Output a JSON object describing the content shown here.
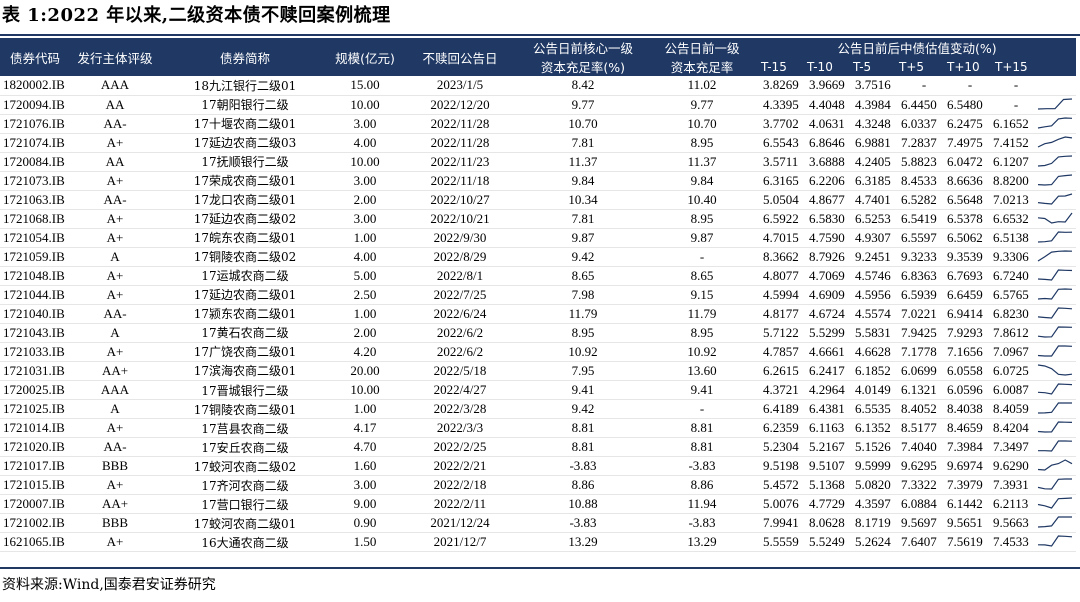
{
  "title": "表 1:2022 年以来,二级资本债不赎回案例梳理",
  "header": {
    "code": "债券代码",
    "rating": "发行主体评级",
    "name": "债券简称",
    "scale": "规模(亿元)",
    "date": "不赎回公告日",
    "core_line1": "公告日前核心一级",
    "core_line2": "资本充足率(%)",
    "tier1_line1": "公告日前一级",
    "tier1_line2": "资本充足率",
    "change_title": "公告日前后中债估值变动(%)",
    "offsets": [
      "T-15",
      "T-10",
      "T-5",
      "T+5",
      "T+10",
      "T+15"
    ]
  },
  "colors": {
    "header_bg": "#1f3864",
    "header_fg": "#ffffff",
    "rule": "#1f3864",
    "spark": "#1f3864"
  },
  "rows": [
    {
      "code": "1820002.IB",
      "rating": "AAA",
      "name": "18九江银行二级01",
      "scale": "15.00",
      "date": "2023/1/5",
      "core": "8.42",
      "tier1": "11.02",
      "vals": [
        "3.8269",
        "3.9669",
        "3.7516",
        "-",
        "-",
        "-"
      ]
    },
    {
      "code": "1720094.IB",
      "rating": "AA",
      "name": "17朝阳银行二级",
      "scale": "10.00",
      "date": "2022/12/20",
      "core": "9.77",
      "tier1": "9.77",
      "vals": [
        "4.3395",
        "4.4048",
        "4.3984",
        "6.4450",
        "6.5480",
        "-"
      ]
    },
    {
      "code": "1721076.IB",
      "rating": "AA-",
      "name": "17十堰农商二级01",
      "scale": "3.00",
      "date": "2022/11/28",
      "core": "10.70",
      "tier1": "10.70",
      "vals": [
        "3.7702",
        "4.0631",
        "4.3248",
        "6.0337",
        "6.2475",
        "6.1652"
      ]
    },
    {
      "code": "1721074.IB",
      "rating": "A+",
      "name": "17延边农商二级03",
      "scale": "4.00",
      "date": "2022/11/28",
      "core": "7.81",
      "tier1": "8.95",
      "vals": [
        "6.5543",
        "6.8646",
        "6.9881",
        "7.2837",
        "7.4975",
        "7.4152"
      ]
    },
    {
      "code": "1720084.IB",
      "rating": "AA",
      "name": "17抚顺银行二级",
      "scale": "10.00",
      "date": "2022/11/23",
      "core": "11.37",
      "tier1": "11.37",
      "vals": [
        "3.5711",
        "3.6888",
        "4.2405",
        "5.8823",
        "6.0472",
        "6.1207"
      ]
    },
    {
      "code": "1721073.IB",
      "rating": "A+",
      "name": "17荣成农商二级01",
      "scale": "3.00",
      "date": "2022/11/18",
      "core": "9.84",
      "tier1": "9.84",
      "vals": [
        "6.3165",
        "6.2206",
        "6.3185",
        "8.4533",
        "8.6636",
        "8.8200"
      ]
    },
    {
      "code": "1721063.IB",
      "rating": "AA-",
      "name": "17龙口农商二级01",
      "scale": "2.00",
      "date": "2022/10/27",
      "core": "10.34",
      "tier1": "10.40",
      "vals": [
        "5.0504",
        "4.8677",
        "4.7401",
        "6.5282",
        "6.5648",
        "7.0213"
      ]
    },
    {
      "code": "1721068.IB",
      "rating": "A+",
      "name": "17延边农商二级02",
      "scale": "3.00",
      "date": "2022/10/21",
      "core": "7.81",
      "tier1": "8.95",
      "vals": [
        "6.5922",
        "6.5830",
        "6.5253",
        "6.5419",
        "6.5378",
        "6.6532"
      ]
    },
    {
      "code": "1721054.IB",
      "rating": "A+",
      "name": "17皖东农商二级01",
      "scale": "1.00",
      "date": "2022/9/30",
      "core": "9.87",
      "tier1": "9.87",
      "vals": [
        "4.7015",
        "4.7590",
        "4.9307",
        "6.5597",
        "6.5062",
        "6.5138"
      ]
    },
    {
      "code": "1721059.IB",
      "rating": "A",
      "name": "17铜陵农商二级02",
      "scale": "4.00",
      "date": "2022/8/29",
      "core": "9.42",
      "tier1": "-",
      "vals": [
        "8.3662",
        "8.7926",
        "9.2451",
        "9.3233",
        "9.3539",
        "9.3306"
      ]
    },
    {
      "code": "1721048.IB",
      "rating": "A+",
      "name": "17运城农商二级",
      "scale": "5.00",
      "date": "2022/8/1",
      "core": "8.65",
      "tier1": "8.65",
      "vals": [
        "4.8077",
        "4.7069",
        "4.5746",
        "6.8363",
        "6.7693",
        "6.7240"
      ]
    },
    {
      "code": "1721044.IB",
      "rating": "A+",
      "name": "17延边农商二级01",
      "scale": "2.50",
      "date": "2022/7/25",
      "core": "7.98",
      "tier1": "9.15",
      "vals": [
        "4.5994",
        "4.6909",
        "4.5956",
        "6.5939",
        "6.6459",
        "6.5765"
      ]
    },
    {
      "code": "1721040.IB",
      "rating": "AA-",
      "name": "17颍东农商二级01",
      "scale": "1.00",
      "date": "2022/6/24",
      "core": "11.79",
      "tier1": "11.79",
      "vals": [
        "4.8177",
        "4.6724",
        "4.5574",
        "7.0221",
        "6.9414",
        "6.8230"
      ]
    },
    {
      "code": "1721043.IB",
      "rating": "A",
      "name": "17黄石农商二级",
      "scale": "2.00",
      "date": "2022/6/2",
      "core": "8.95",
      "tier1": "8.95",
      "vals": [
        "5.7122",
        "5.5299",
        "5.5831",
        "7.9425",
        "7.9293",
        "7.8612"
      ]
    },
    {
      "code": "1721033.IB",
      "rating": "A+",
      "name": "17广饶农商二级01",
      "scale": "4.20",
      "date": "2022/6/2",
      "core": "10.92",
      "tier1": "10.92",
      "vals": [
        "4.7857",
        "4.6661",
        "4.6628",
        "7.1778",
        "7.1656",
        "7.0967"
      ]
    },
    {
      "code": "1721031.IB",
      "rating": "AA+",
      "name": "17滨海农商二级01",
      "scale": "20.00",
      "date": "2022/5/18",
      "core": "7.95",
      "tier1": "13.60",
      "vals": [
        "6.2615",
        "6.2417",
        "6.1852",
        "6.0699",
        "6.0558",
        "6.0725"
      ]
    },
    {
      "code": "1720025.IB",
      "rating": "AAA",
      "name": "17晋城银行二级",
      "scale": "10.00",
      "date": "2022/4/27",
      "core": "9.41",
      "tier1": "9.41",
      "vals": [
        "4.3721",
        "4.2964",
        "4.0149",
        "6.1321",
        "6.0596",
        "6.0087"
      ]
    },
    {
      "code": "1721025.IB",
      "rating": "A",
      "name": "17铜陵农商二级01",
      "scale": "1.00",
      "date": "2022/3/28",
      "core": "9.42",
      "tier1": "-",
      "vals": [
        "6.4189",
        "6.4381",
        "6.5535",
        "8.4052",
        "8.4038",
        "8.4059"
      ]
    },
    {
      "code": "1721014.IB",
      "rating": "A+",
      "name": "17莒县农商二级",
      "scale": "4.17",
      "date": "2022/3/3",
      "core": "8.81",
      "tier1": "8.81",
      "vals": [
        "6.2359",
        "6.1163",
        "6.1352",
        "8.5177",
        "8.4659",
        "8.4204"
      ]
    },
    {
      "code": "1721020.IB",
      "rating": "AA-",
      "name": "17安丘农商二级",
      "scale": "4.70",
      "date": "2022/2/25",
      "core": "8.81",
      "tier1": "8.81",
      "vals": [
        "5.2304",
        "5.2167",
        "5.1526",
        "7.4040",
        "7.3984",
        "7.3497"
      ]
    },
    {
      "code": "1721017.IB",
      "rating": "BBB",
      "name": "17蛟河农商二级02",
      "scale": "1.60",
      "date": "2022/2/21",
      "core": "-3.83",
      "tier1": "-3.83",
      "vals": [
        "9.5198",
        "9.5107",
        "9.5999",
        "9.6295",
        "9.6974",
        "9.6290"
      ]
    },
    {
      "code": "1721015.IB",
      "rating": "A+",
      "name": "17齐河农商二级",
      "scale": "3.00",
      "date": "2022/2/18",
      "core": "8.86",
      "tier1": "8.86",
      "vals": [
        "5.4572",
        "5.1368",
        "5.0820",
        "7.3322",
        "7.3979",
        "7.3931"
      ]
    },
    {
      "code": "1720007.IB",
      "rating": "AA+",
      "name": "17营口银行二级",
      "scale": "9.00",
      "date": "2022/2/11",
      "core": "10.88",
      "tier1": "11.94",
      "vals": [
        "5.0076",
        "4.7729",
        "4.3597",
        "6.0884",
        "6.1442",
        "6.2113"
      ]
    },
    {
      "code": "1721002.IB",
      "rating": "BBB",
      "name": "17蛟河农商二级01",
      "scale": "0.90",
      "date": "2021/12/24",
      "core": "-3.83",
      "tier1": "-3.83",
      "vals": [
        "7.9941",
        "8.0628",
        "8.1719",
        "9.5697",
        "9.5651",
        "9.5663"
      ]
    },
    {
      "code": "1621065.IB",
      "rating": "A+",
      "name": "16大通农商二级",
      "scale": "1.50",
      "date": "2021/12/7",
      "core": "13.29",
      "tier1": "13.29",
      "vals": [
        "5.5559",
        "5.5249",
        "5.2624",
        "7.6407",
        "7.5619",
        "7.4533"
      ]
    }
  ],
  "source": "资料来源:Wind,国泰君安证券研究"
}
